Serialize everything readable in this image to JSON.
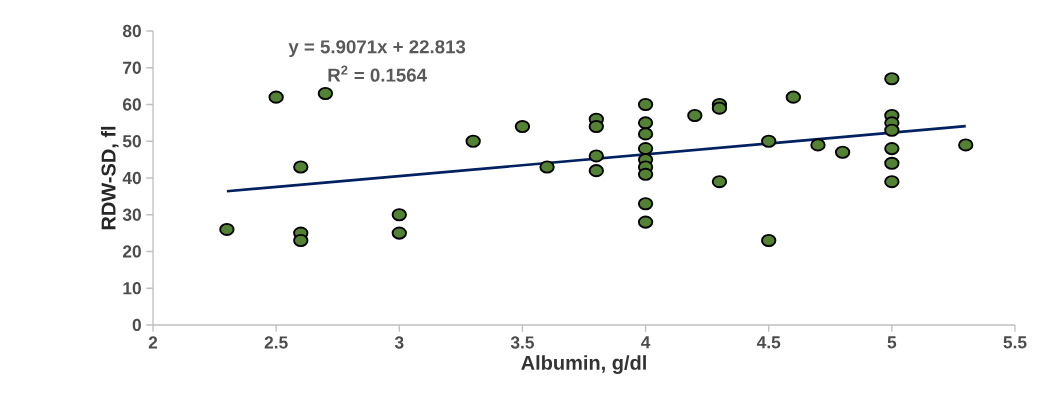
{
  "chart_data": {
    "type": "scatter",
    "xlabel": "Albumin, g/dl",
    "ylabel": "RDW-SD, fl",
    "annotations": [
      "y = 5.9071x + 22.813",
      "R$^{2}$ = 0.1564"
    ],
    "xlim": [
      2,
      5.5
    ],
    "xticks": [
      2,
      2.5,
      3,
      3.5,
      4,
      4.5,
      5,
      5.5
    ],
    "ylim": [
      0,
      80
    ],
    "yticks": [
      0,
      10,
      20,
      30,
      40,
      50,
      60,
      70,
      80
    ],
    "grid": false,
    "series": [
      {
        "marker": "circle",
        "color": "#548235",
        "x": [
          2.3,
          2.5,
          2.6,
          2.6,
          2.6,
          2.7,
          3.0,
          3.0,
          3.3,
          3.5,
          3.6,
          3.8,
          3.8,
          3.8,
          3.8,
          4.0,
          4.0,
          4.0,
          4.0,
          4.0,
          4.0,
          4.0,
          4.0,
          4.0,
          4.2,
          4.3,
          4.3,
          4.3,
          4.5,
          4.5,
          4.6,
          4.7,
          4.8,
          5.0,
          5.0,
          5.0,
          5.0,
          5.0,
          5.0,
          5.0,
          5.3
        ],
        "values": [
          26,
          62,
          43,
          25,
          23,
          63,
          30,
          25,
          50,
          54,
          43,
          56,
          54,
          46,
          42,
          60,
          55,
          52,
          48,
          45,
          43,
          41,
          33,
          28,
          57,
          60,
          59,
          39,
          50,
          23,
          62,
          49,
          47,
          67,
          57,
          55,
          53,
          48,
          44,
          39,
          49
        ]
      },
      {
        "type": "line",
        "color": "#002060",
        "line_style": "solid",
        "x": [
          2.3,
          5.3
        ],
        "values": [
          36.4,
          54.1
        ]
      }
    ]
  }
}
